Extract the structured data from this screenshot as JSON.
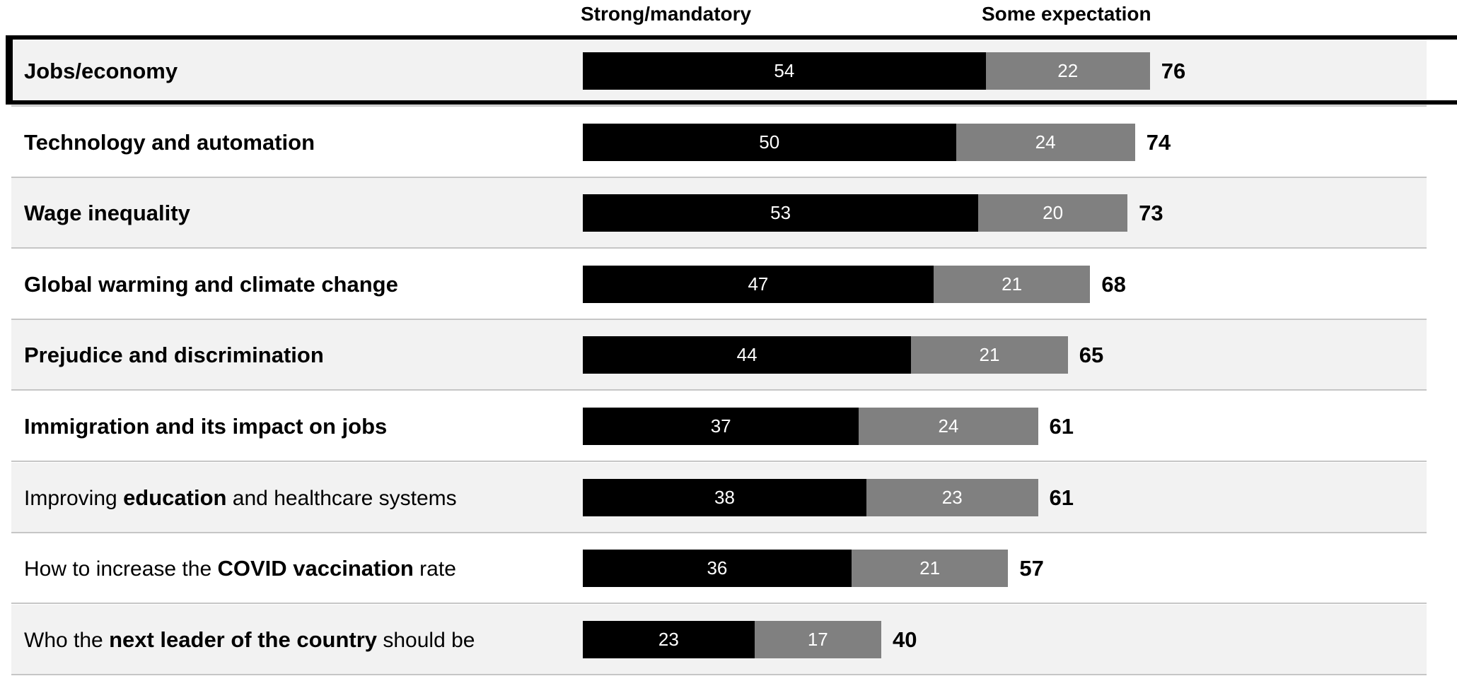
{
  "chart_data": {
    "type": "bar",
    "orientation": "horizontal",
    "stacked": true,
    "series": [
      {
        "name": "Strong/mandatory",
        "color": "#000000",
        "values": [
          54,
          50,
          53,
          47,
          44,
          37,
          38,
          36,
          23
        ]
      },
      {
        "name": "Some expectation",
        "color": "#808080",
        "values": [
          22,
          24,
          20,
          21,
          21,
          24,
          23,
          21,
          17
        ]
      }
    ],
    "totals": [
      76,
      74,
      73,
      68,
      65,
      61,
      61,
      57,
      40
    ],
    "categories": [
      {
        "parts": [
          {
            "text": "Jobs/economy",
            "bold": true
          }
        ],
        "bold": true,
        "shaded": true
      },
      {
        "parts": [
          {
            "text": "Technology and automation",
            "bold": true
          }
        ],
        "bold": true,
        "shaded": false
      },
      {
        "parts": [
          {
            "text": "Wage inequality",
            "bold": true
          }
        ],
        "bold": true,
        "shaded": true
      },
      {
        "parts": [
          {
            "text": "Global warming and climate change",
            "bold": true
          }
        ],
        "bold": true,
        "shaded": false
      },
      {
        "parts": [
          {
            "text": "Prejudice and discrimination",
            "bold": true
          }
        ],
        "bold": true,
        "shaded": true
      },
      {
        "parts": [
          {
            "text": "Immigration and its impact on jobs",
            "bold": true
          }
        ],
        "bold": true,
        "shaded": false
      },
      {
        "parts": [
          {
            "text": "Improving ",
            "bold": false
          },
          {
            "text": "education",
            "bold": true
          },
          {
            "text": " and healthcare systems",
            "bold": false
          }
        ],
        "bold": false,
        "shaded": true
      },
      {
        "parts": [
          {
            "text": "How to increase the ",
            "bold": false
          },
          {
            "text": "COVID vaccination",
            "bold": true
          },
          {
            "text": " rate",
            "bold": false
          }
        ],
        "bold": false,
        "shaded": false
      },
      {
        "parts": [
          {
            "text": "Who the ",
            "bold": false
          },
          {
            "text": "next leader of the country",
            "bold": true
          },
          {
            "text": " should be",
            "bold": false
          }
        ],
        "bold": false,
        "shaded": true
      }
    ],
    "highlighted_category_index": 0,
    "xlim": [
      0,
      100
    ],
    "legend_placement": "top",
    "grid": false
  }
}
